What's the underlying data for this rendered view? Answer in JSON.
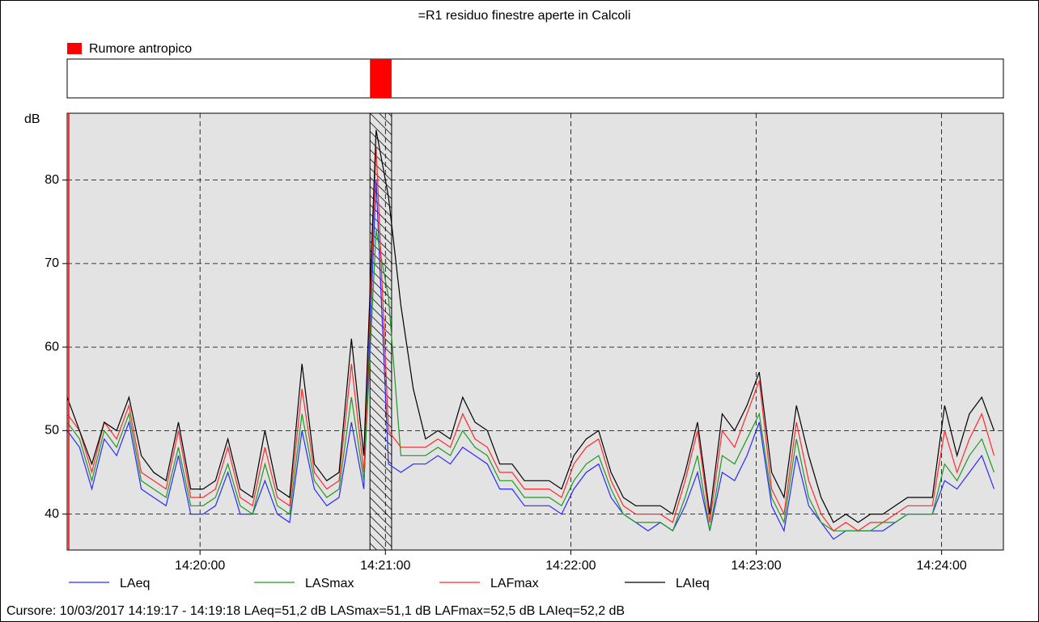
{
  "chart_data": {
    "type": "line",
    "title": "=R1 residuo finestre aperte in Calcoli",
    "ylabel": "dB",
    "x": [
      "14:19:17",
      "14:19:21",
      "14:19:25",
      "14:19:29",
      "14:19:33",
      "14:19:37",
      "14:19:41",
      "14:19:45",
      "14:19:49",
      "14:19:53",
      "14:19:57",
      "14:20:01",
      "14:20:05",
      "14:20:09",
      "14:20:13",
      "14:20:17",
      "14:20:21",
      "14:20:25",
      "14:20:29",
      "14:20:33",
      "14:20:37",
      "14:20:41",
      "14:20:45",
      "14:20:49",
      "14:20:53",
      "14:20:57",
      "14:21:01",
      "14:21:05",
      "14:21:09",
      "14:21:13",
      "14:21:17",
      "14:21:21",
      "14:21:25",
      "14:21:29",
      "14:21:33",
      "14:21:37",
      "14:21:41",
      "14:21:45",
      "14:21:49",
      "14:21:53",
      "14:21:57",
      "14:22:01",
      "14:22:05",
      "14:22:09",
      "14:22:13",
      "14:22:17",
      "14:22:21",
      "14:22:25",
      "14:22:29",
      "14:22:33",
      "14:22:37",
      "14:22:41",
      "14:22:45",
      "14:22:49",
      "14:22:53",
      "14:22:57",
      "14:23:01",
      "14:23:05",
      "14:23:09",
      "14:23:13",
      "14:23:17",
      "14:23:21",
      "14:23:25",
      "14:23:29",
      "14:23:33",
      "14:23:37",
      "14:23:41",
      "14:23:45",
      "14:23:49",
      "14:23:53",
      "14:23:57",
      "14:24:01",
      "14:24:05",
      "14:24:09",
      "14:24:13",
      "14:24:17"
    ],
    "series": [
      {
        "name": "LAeq",
        "color": "#2a2aff",
        "values": [
          50,
          48,
          43,
          49,
          47,
          51,
          43,
          42,
          41,
          47,
          40,
          40,
          41,
          45,
          40,
          40,
          44,
          40,
          39,
          50,
          43,
          41,
          42,
          51,
          43,
          80,
          46,
          45,
          46,
          46,
          47,
          46,
          48,
          47,
          46,
          43,
          43,
          41,
          41,
          41,
          40,
          43,
          45,
          46,
          42,
          40,
          39,
          38,
          39,
          38,
          41,
          45,
          38,
          45,
          44,
          47,
          51,
          41,
          38,
          47,
          41,
          39,
          37,
          38,
          38,
          38,
          38,
          39,
          40,
          40,
          40,
          44,
          43,
          45,
          47,
          43
        ]
      },
      {
        "name": "LASmax",
        "color": "#1f9a1f",
        "values": [
          51,
          49,
          44,
          50,
          48,
          52,
          44,
          43,
          42,
          48,
          41,
          41,
          42,
          46,
          41,
          40,
          46,
          41,
          40,
          52,
          44,
          42,
          43,
          54,
          44,
          74,
          66,
          47,
          47,
          47,
          48,
          47,
          50,
          48,
          47,
          44,
          44,
          42,
          42,
          42,
          41,
          44,
          46,
          47,
          43,
          40,
          39,
          39,
          39,
          38,
          42,
          47,
          38,
          47,
          46,
          49,
          52,
          42,
          39,
          49,
          42,
          39,
          38,
          38,
          38,
          38,
          39,
          39,
          40,
          40,
          40,
          46,
          44,
          47,
          49,
          45
        ]
      },
      {
        "name": "LAFmax",
        "color": "#ff2a2a",
        "values": [
          52,
          50,
          45,
          51,
          49,
          53,
          45,
          44,
          43,
          50,
          42,
          42,
          43,
          48,
          42,
          41,
          48,
          42,
          41,
          55,
          45,
          43,
          44,
          58,
          45,
          84,
          50,
          48,
          48,
          48,
          49,
          48,
          52,
          49,
          48,
          45,
          45,
          43,
          43,
          43,
          42,
          46,
          48,
          49,
          44,
          41,
          40,
          40,
          40,
          39,
          44,
          50,
          39,
          50,
          48,
          52,
          56,
          43,
          40,
          51,
          44,
          40,
          38,
          39,
          38,
          39,
          39,
          40,
          41,
          41,
          41,
          50,
          45,
          49,
          52,
          47
        ]
      },
      {
        "name": "LAIeq",
        "color": "#000000",
        "values": [
          54,
          50,
          46,
          51,
          50,
          54,
          47,
          45,
          44,
          51,
          43,
          43,
          44,
          49,
          43,
          42,
          50,
          43,
          42,
          58,
          46,
          44,
          45,
          61,
          47,
          86,
          78,
          65,
          55,
          49,
          50,
          49,
          54,
          51,
          50,
          46,
          46,
          44,
          44,
          44,
          43,
          47,
          49,
          50,
          45,
          42,
          41,
          41,
          41,
          40,
          45,
          51,
          40,
          52,
          50,
          53,
          57,
          45,
          42,
          53,
          47,
          42,
          39,
          40,
          39,
          40,
          40,
          41,
          42,
          42,
          42,
          53,
          47,
          52,
          54,
          50
        ]
      }
    ],
    "xlim": [
      "14:19:17",
      "14:24:20"
    ],
    "xticks": [
      "14:20:00",
      "14:21:00",
      "14:22:00",
      "14:23:00",
      "14:24:00"
    ],
    "ylim": [
      35.7,
      88
    ],
    "yticks": [
      40,
      50,
      60,
      70,
      80
    ],
    "grid": true,
    "event": {
      "label": "Rumore antropico",
      "color": "#ff0000",
      "start": "14:20:55",
      "end": "14:21:02"
    },
    "footer": "Cursore: 10/03/2017 14:19:17 - 14:19:18  LAeq=51,2 dB  LASmax=51,1 dB  LAFmax=52,5 dB  LAIeq=52,2 dB"
  }
}
